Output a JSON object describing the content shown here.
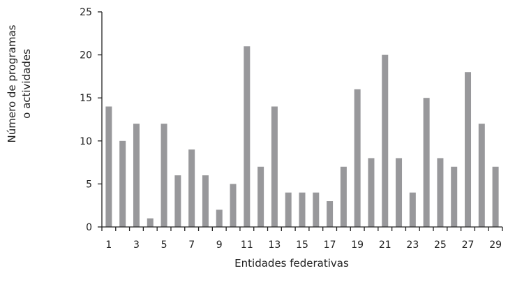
{
  "chart_data": {
    "type": "bar",
    "xlabel": "Entidades federativas",
    "ylabel": [
      "Número de programas",
      "o actividades"
    ],
    "ylim": [
      0,
      25
    ],
    "yticks": [
      "0",
      "5",
      "10",
      "15",
      "20",
      "25"
    ],
    "categories": [
      "1",
      "2",
      "3",
      "4",
      "5",
      "6",
      "7",
      "8",
      "9",
      "10",
      "11",
      "12",
      "13",
      "14",
      "15",
      "16",
      "17",
      "18",
      "19",
      "20",
      "21",
      "22",
      "23",
      "24",
      "25",
      "26",
      "27",
      "28",
      "29"
    ],
    "xtick_labels": [
      "1",
      "3",
      "5",
      "7",
      "9",
      "11",
      "13",
      "15",
      "17",
      "19",
      "21",
      "23",
      "25",
      "27",
      "29"
    ],
    "values": [
      14,
      10,
      12,
      1,
      12,
      6,
      9,
      6,
      2,
      5,
      21,
      7,
      14,
      4,
      4,
      4,
      3,
      7,
      16,
      8,
      20,
      8,
      4,
      15,
      8,
      7,
      18,
      12,
      7
    ],
    "bar_color": "#98989b",
    "grid": false,
    "legend": "none"
  }
}
